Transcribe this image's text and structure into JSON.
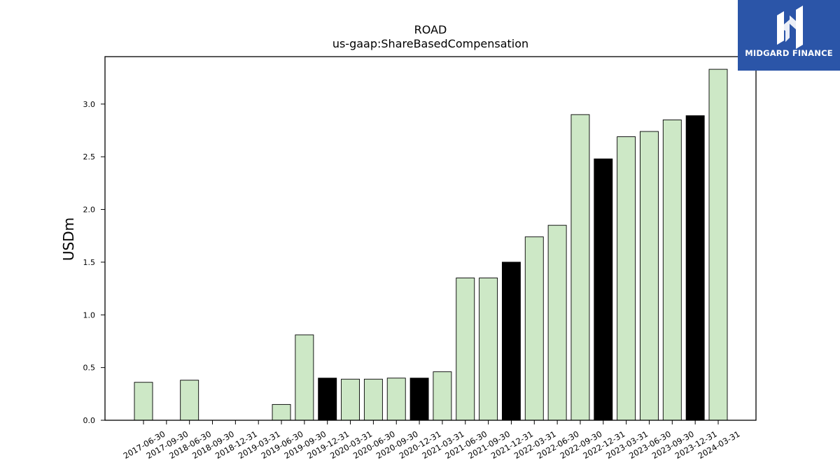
{
  "logo": {
    "text": "MIDGARD FINANCE",
    "background": "#2b55a8"
  },
  "chart_data": {
    "type": "bar",
    "title": "ROAD",
    "subtitle": "us-gaap:ShareBasedCompensation",
    "xlabel": "",
    "ylabel": "USDm",
    "ylim": [
      0,
      3.45
    ],
    "yticks": [
      0.0,
      0.5,
      1.0,
      1.5,
      2.0,
      2.5,
      3.0
    ],
    "categories": [
      "2017-06-30",
      "2017-09-30",
      "2018-06-30",
      "2018-09-30",
      "2018-12-31",
      "2019-03-31",
      "2019-06-30",
      "2019-09-30",
      "2019-12-31",
      "2020-03-31",
      "2020-06-30",
      "2020-09-30",
      "2020-12-31",
      "2021-03-31",
      "2021-06-30",
      "2021-09-30",
      "2021-12-31",
      "2022-03-31",
      "2022-06-30",
      "2022-09-30",
      "2022-12-31",
      "2023-03-31",
      "2023-06-30",
      "2023-09-30",
      "2023-12-31",
      "2024-03-31"
    ],
    "values": [
      0.36,
      0.0,
      0.38,
      0.0,
      0.0,
      0.0,
      0.15,
      0.81,
      0.4,
      0.39,
      0.39,
      0.4,
      0.4,
      0.46,
      1.35,
      1.35,
      1.5,
      1.74,
      1.85,
      2.9,
      2.48,
      2.69,
      2.74,
      2.85,
      2.89,
      3.33
    ],
    "highlight": [
      false,
      false,
      false,
      false,
      false,
      false,
      false,
      false,
      true,
      false,
      false,
      false,
      true,
      false,
      false,
      false,
      true,
      false,
      false,
      false,
      true,
      false,
      false,
      false,
      true,
      false
    ],
    "colors": {
      "bar": "#cde8c6",
      "highlight": "#000000",
      "edge": "#000000"
    },
    "grid": false,
    "legend": "none"
  }
}
